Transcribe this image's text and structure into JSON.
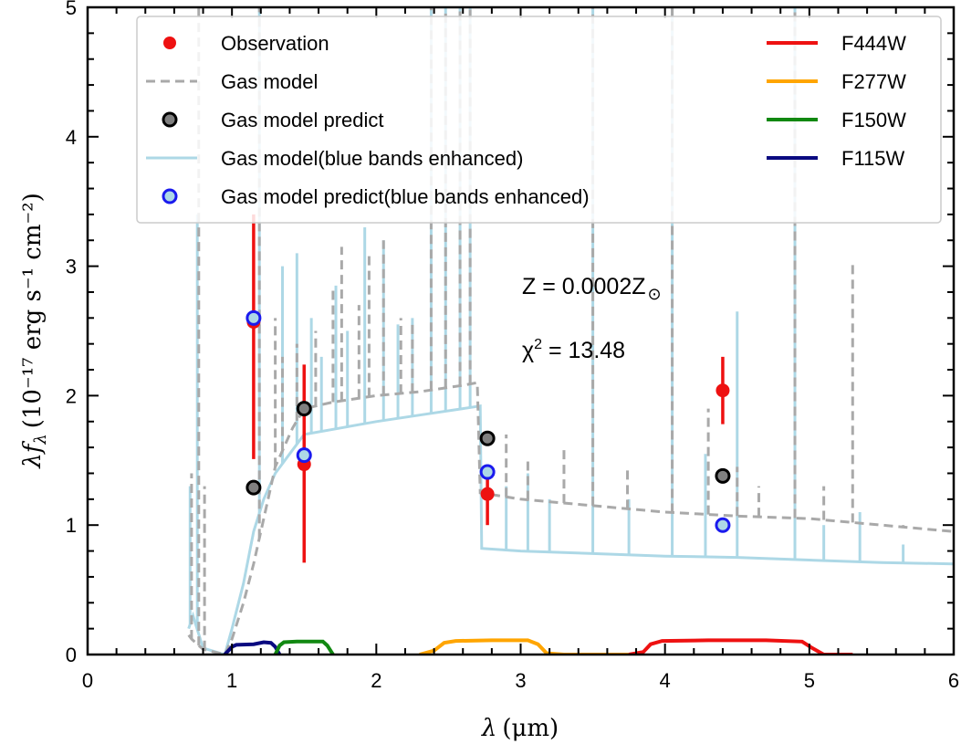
{
  "chart_data": {
    "type": "scatter",
    "xlabel_symbol": "λ",
    "xlabel_unit": "(μm)",
    "ylabel_symbol": "λf",
    "ylabel_subscript": "λ",
    "ylabel_unit": "(10⁻¹⁷ erg s⁻¹ cm⁻²)",
    "xlim": [
      0,
      6
    ],
    "ylim": [
      0,
      5
    ],
    "xticks": [
      0,
      1,
      2,
      3,
      4,
      5,
      6
    ],
    "yticks": [
      0,
      1,
      2,
      3,
      4,
      5
    ],
    "xtick_labels": [
      "0",
      "1",
      "2",
      "3",
      "4",
      "5",
      "6"
    ],
    "ytick_labels": [
      "0",
      "1",
      "2",
      "3",
      "4",
      "5"
    ],
    "legend_placement": "top",
    "annotations": {
      "metallicity": "Z = 0.0002Z",
      "metallicity_symbol": "⊙",
      "chi2_prefix": "χ",
      "chi2_sup": "2",
      "chi2_value": " = 13.48"
    },
    "legend": {
      "observation": "Observation",
      "gas_model": "Gas model",
      "gas_model_predict": "Gas model predict",
      "gas_model_blue": "Gas model(blue bands enhanced)",
      "gas_model_predict_blue": "Gas model predict(blue bands enhanced)",
      "f444w": "F444W",
      "f277w": "F277W",
      "f150w": "F150W",
      "f115w": "F115W"
    },
    "colors": {
      "observation": "#ee1111",
      "gas_model": "#a9a9a9",
      "gas_model_blue": "#add8e6",
      "predict_face": "#808080",
      "predict_blue_edge": "#1a1aee",
      "f444w": "#ee1111",
      "f277w": "#ffa500",
      "f150w": "#118811",
      "f115w": "#0a0a80"
    },
    "observation": {
      "x": [
        1.15,
        1.5,
        2.77,
        4.4
      ],
      "y": [
        2.57,
        1.47,
        1.24,
        2.04
      ],
      "yerr_low": [
        1.06,
        0.76,
        0.24,
        0.26
      ],
      "yerr_high": [
        0.83,
        0.77,
        0.16,
        0.26
      ]
    },
    "gas_model_predict": {
      "x": [
        1.15,
        1.5,
        2.77,
        4.4
      ],
      "y": [
        1.29,
        1.9,
        1.67,
        1.38
      ]
    },
    "gas_model_predict_blue": {
      "x": [
        1.15,
        1.5,
        2.77,
        4.4
      ],
      "y": [
        2.6,
        1.54,
        1.41,
        1.0
      ]
    },
    "gas_model_continuum": {
      "x": [
        0.7,
        0.72,
        0.8,
        0.95,
        1.0,
        1.08,
        1.15,
        1.22,
        1.3,
        1.42,
        1.5,
        1.7,
        2.0,
        2.3,
        2.6,
        2.7,
        2.72,
        3.0,
        3.5,
        4.0,
        4.5,
        5.0,
        5.5,
        6.0
      ],
      "y": [
        0.15,
        0.12,
        0.04,
        0.0,
        0.12,
        0.4,
        0.7,
        1.05,
        1.45,
        1.75,
        1.9,
        1.95,
        2.0,
        2.03,
        2.08,
        2.1,
        1.25,
        1.2,
        1.15,
        1.1,
        1.07,
        1.05,
        1.0,
        0.95
      ]
    },
    "gas_model_lines": {
      "x": [
        0.72,
        0.77,
        0.81,
        1.19,
        1.3,
        1.35,
        1.45,
        1.58,
        1.7,
        1.76,
        1.88,
        1.95,
        2.05,
        2.17,
        2.25,
        2.38,
        2.48,
        2.58,
        2.65,
        2.9,
        3.05,
        3.3,
        3.5,
        3.74,
        4.05,
        4.3,
        4.5,
        4.65,
        4.9,
        5.1,
        5.3,
        5.65
      ],
      "y": [
        1.4,
        5.0,
        1.3,
        5.0,
        2.6,
        2.3,
        2.4,
        2.5,
        2.85,
        3.15,
        2.7,
        3.1,
        3.2,
        2.6,
        2.55,
        5.0,
        5.0,
        5.0,
        5.0,
        1.7,
        1.5,
        1.6,
        5.0,
        1.45,
        5.0,
        1.9,
        1.45,
        1.3,
        5.0,
        1.3,
        3.05,
        1.0
      ]
    },
    "blue_model_continuum": {
      "x": [
        0.7,
        0.73,
        0.8,
        0.95,
        1.0,
        1.08,
        1.15,
        1.22,
        1.3,
        1.4,
        1.5,
        1.7,
        2.0,
        2.3,
        2.6,
        2.72,
        2.73,
        3.0,
        3.5,
        4.0,
        4.5,
        5.0,
        5.5,
        6.0
      ],
      "y": [
        0.2,
        0.3,
        0.05,
        0.0,
        0.2,
        0.55,
        0.95,
        1.2,
        1.4,
        1.55,
        1.7,
        1.74,
        1.8,
        1.85,
        1.9,
        1.92,
        0.82,
        0.8,
        0.78,
        0.76,
        0.75,
        0.73,
        0.71,
        0.7
      ]
    },
    "blue_model_lines": {
      "x": [
        0.71,
        0.76,
        1.19,
        1.35,
        1.45,
        1.55,
        1.62,
        1.72,
        1.8,
        1.92,
        2.05,
        2.15,
        2.25,
        2.38,
        2.48,
        2.58,
        2.65,
        2.9,
        3.05,
        3.2,
        3.5,
        3.75,
        4.05,
        4.28,
        4.5,
        4.9,
        5.1,
        5.35,
        5.65
      ],
      "y": [
        1.3,
        3.4,
        5.0,
        3.0,
        3.1,
        2.6,
        2.3,
        2.85,
        2.5,
        3.3,
        3.2,
        2.55,
        2.6,
        5.0,
        5.0,
        5.0,
        5.0,
        1.3,
        1.4,
        1.2,
        5.0,
        1.2,
        5.0,
        1.55,
        2.65,
        5.0,
        1.0,
        1.1,
        0.85
      ]
    },
    "filters": [
      {
        "name": "F115W",
        "x": [
          0.95,
          1.0,
          1.03,
          1.15,
          1.22,
          1.27,
          1.3,
          1.33
        ],
        "y": [
          0.0,
          0.06,
          0.075,
          0.08,
          0.095,
          0.09,
          0.06,
          0.0
        ]
      },
      {
        "name": "F150W",
        "x": [
          1.3,
          1.33,
          1.36,
          1.45,
          1.55,
          1.63,
          1.66,
          1.7
        ],
        "y": [
          0.0,
          0.07,
          0.095,
          0.1,
          0.1,
          0.1,
          0.07,
          0.0
        ]
      },
      {
        "name": "F277W",
        "x": [
          2.3,
          2.4,
          2.47,
          2.55,
          2.8,
          3.05,
          3.12,
          3.18,
          3.3,
          3.8
        ],
        "y": [
          0.0,
          0.03,
          0.09,
          0.105,
          0.11,
          0.11,
          0.08,
          0.01,
          0.0,
          0.0
        ]
      },
      {
        "name": "F444W",
        "x": [
          3.75,
          3.85,
          3.9,
          3.98,
          4.3,
          4.7,
          4.95,
          5.02,
          5.1,
          5.3
        ],
        "y": [
          0.0,
          0.02,
          0.08,
          0.105,
          0.11,
          0.11,
          0.1,
          0.05,
          0.0,
          0.0
        ]
      }
    ]
  }
}
